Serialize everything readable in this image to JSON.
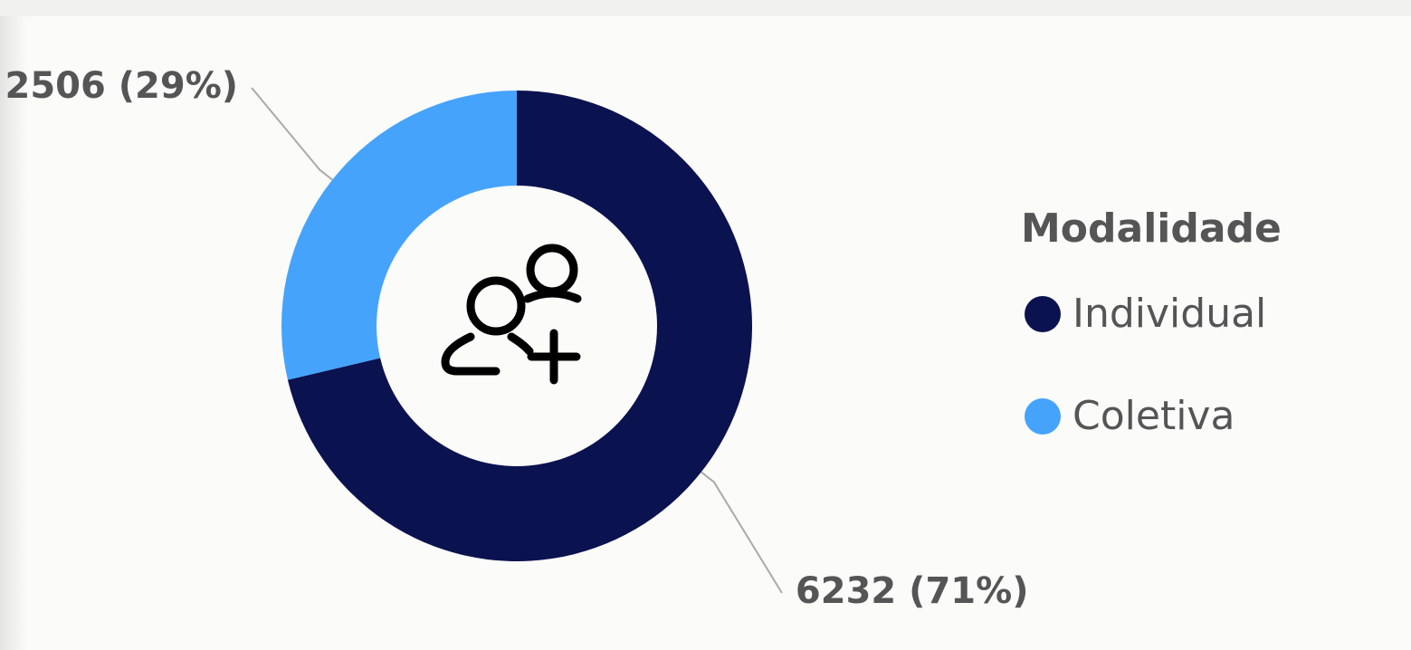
{
  "chart_data": {
    "type": "donut",
    "legend_title": "Modalidade",
    "categories": [
      "Individual",
      "Coletiva"
    ],
    "values": [
      6232,
      2506
    ],
    "value_labels": [
      "6232 (71%)",
      "2506 (29%)"
    ],
    "colors": [
      "#0b1250",
      "#45a3fb"
    ]
  }
}
